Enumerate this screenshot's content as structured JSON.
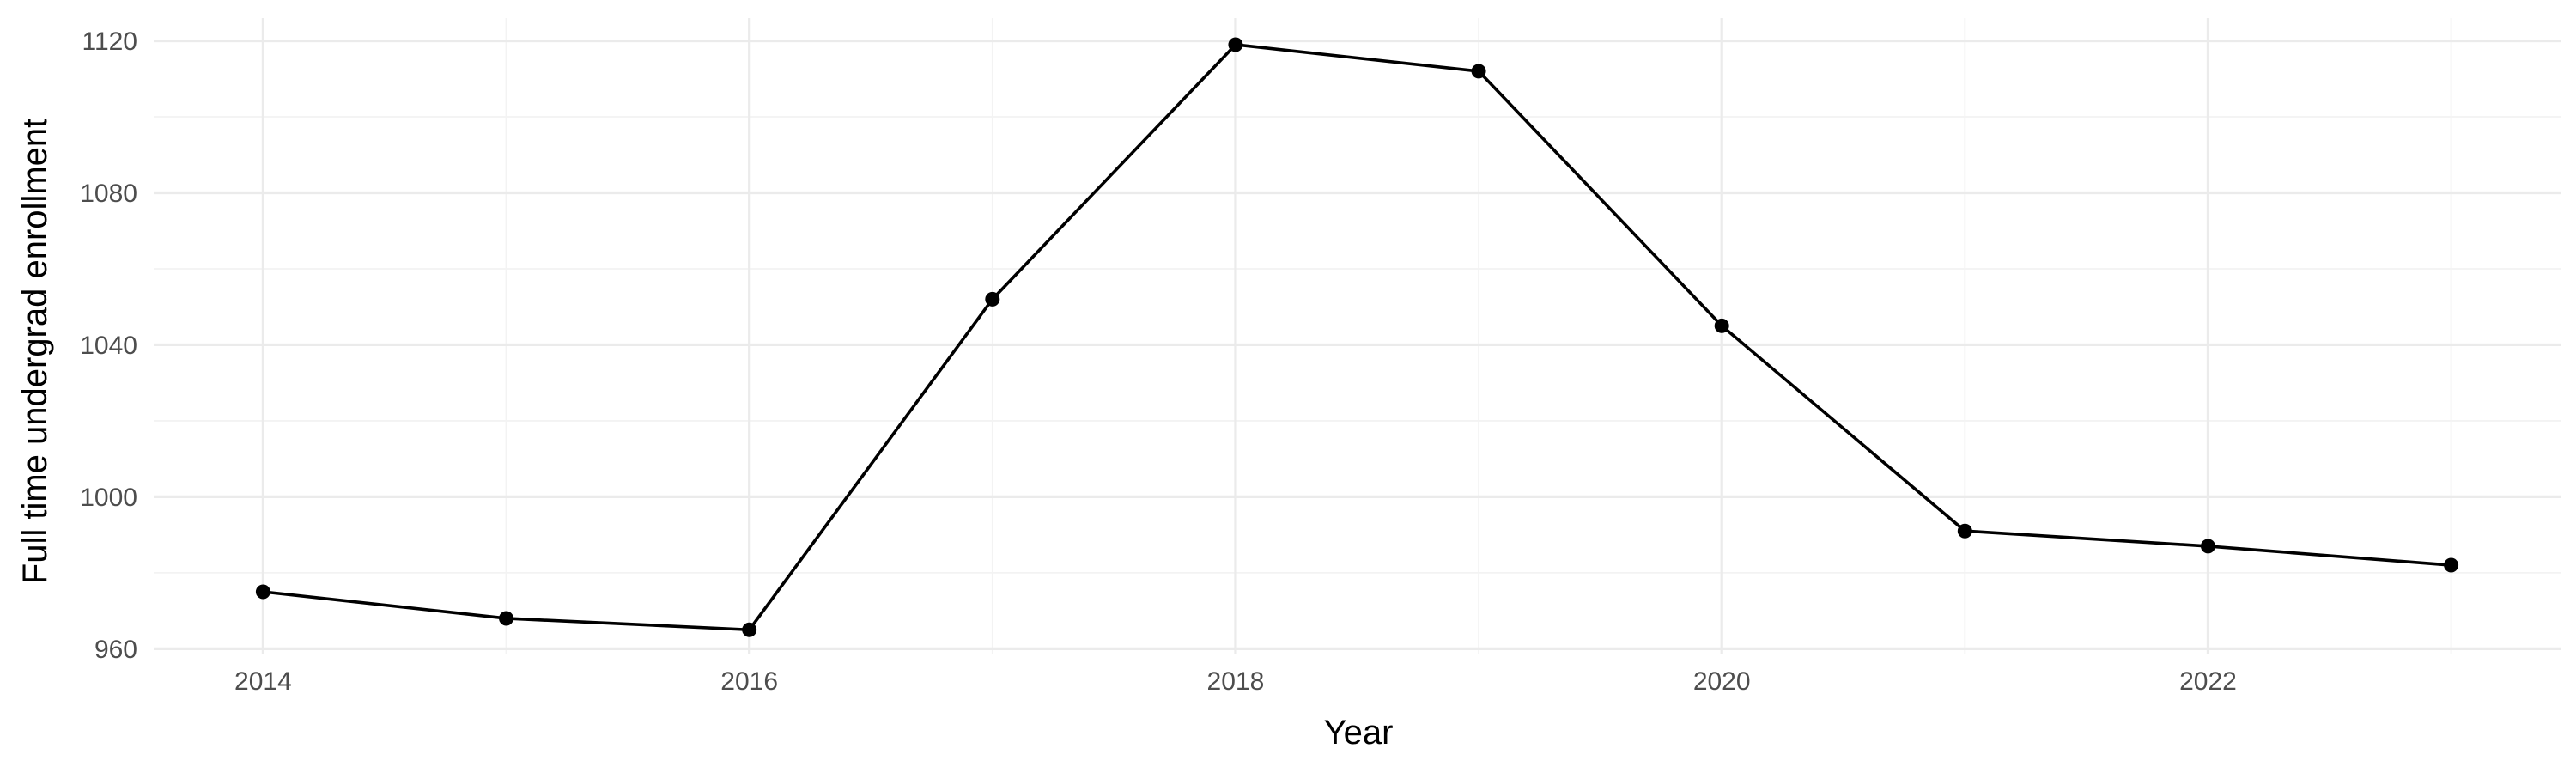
{
  "chart_data": {
    "type": "line",
    "title": "",
    "xlabel": "Year",
    "ylabel": "Full time undergrad enrollment",
    "x": [
      2014,
      2015,
      2016,
      2017,
      2018,
      2019,
      2020,
      2021,
      2022,
      2023
    ],
    "series": [
      {
        "values": [
          975,
          968,
          965,
          1052,
          1119,
          1112,
          1045,
          991,
          987,
          982
        ]
      }
    ],
    "xlim": [
      2013.55,
      2023.45
    ],
    "ylim": [
      958.5,
      1126
    ],
    "x_ticks": [
      2014,
      2016,
      2018,
      2020,
      2022
    ],
    "x_tick_labels": [
      "2014",
      "2016",
      "2018",
      "2020",
      "2022"
    ],
    "x_minor_ticks": [
      2015,
      2017,
      2019,
      2021,
      2023
    ],
    "y_ticks": [
      960,
      1000,
      1040,
      1080,
      1120
    ],
    "y_tick_labels": [
      "960",
      "1000",
      "1040",
      "1080",
      "1120"
    ],
    "y_minor_ticks": [
      980,
      1020,
      1060,
      1100
    ],
    "grid": true,
    "legend": "none",
    "colors": {
      "line": "#000000",
      "point": "#000000",
      "grid_major": "#ebebeb",
      "grid_minor": "#f3f3f3",
      "tick_text": "#4d4d4d",
      "axis_title": "#000000",
      "background": "#ffffff"
    }
  }
}
